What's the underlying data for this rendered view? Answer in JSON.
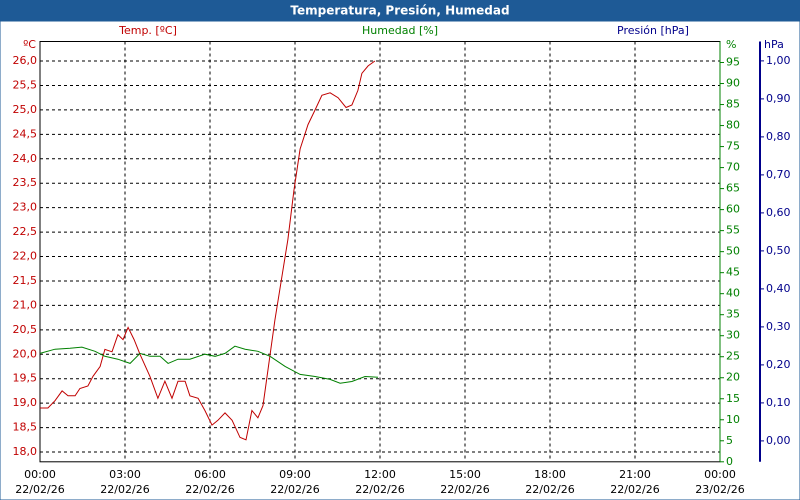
{
  "chart_data": {
    "type": "line",
    "title": "Temperatura, Presión, Humedad",
    "xlim": [
      0,
      24
    ],
    "xticks": [
      {
        "value": 0,
        "label": "00:00",
        "date": "22/02/26"
      },
      {
        "value": 3,
        "label": "03:00",
        "date": "22/02/26"
      },
      {
        "value": 6,
        "label": "06:00",
        "date": "22/02/26"
      },
      {
        "value": 9,
        "label": "09:00",
        "date": "22/02/26"
      },
      {
        "value": 12,
        "label": "12:00",
        "date": "22/02/26"
      },
      {
        "value": 15,
        "label": "15:00",
        "date": "22/02/26"
      },
      {
        "value": 18,
        "label": "18:00",
        "date": "22/02/26"
      },
      {
        "value": 21,
        "label": "21:00",
        "date": "22/02/26"
      },
      {
        "value": 24,
        "label": "00:00",
        "date": "23/02/26"
      }
    ],
    "y_unit": "ºC",
    "ylim": [
      17.8,
      26.4
    ],
    "yticks": [
      {
        "value": 18.0,
        "label": "18,0"
      },
      {
        "value": 18.5,
        "label": "18,5"
      },
      {
        "value": 19.0,
        "label": "19,0"
      },
      {
        "value": 19.5,
        "label": "19,5"
      },
      {
        "value": 20.0,
        "label": "20,0"
      },
      {
        "value": 20.5,
        "label": "20,5"
      },
      {
        "value": 21.0,
        "label": "21,0"
      },
      {
        "value": 21.5,
        "label": "21,5"
      },
      {
        "value": 22.0,
        "label": "22,0"
      },
      {
        "value": 22.5,
        "label": "22,5"
      },
      {
        "value": 23.0,
        "label": "23,0"
      },
      {
        "value": 23.5,
        "label": "23,5"
      },
      {
        "value": 24.0,
        "label": "24,0"
      },
      {
        "value": 24.5,
        "label": "24,5"
      },
      {
        "value": 25.0,
        "label": "25,0"
      },
      {
        "value": 25.5,
        "label": "25,5"
      },
      {
        "value": 26.0,
        "label": "26,0"
      }
    ],
    "y2_unit": "%",
    "y2lim": [
      0,
      100
    ],
    "y2ticks": [
      0,
      5,
      10,
      15,
      20,
      25,
      30,
      35,
      40,
      45,
      50,
      55,
      60,
      65,
      70,
      75,
      80,
      85,
      90,
      95
    ],
    "y3_label": "Presión [hPa]",
    "y3_unit": "hPa",
    "y3lim": [
      -0.055,
      1.051
    ],
    "y3ticks": [
      {
        "value": 0,
        "label": "0,00"
      },
      {
        "value": 0.1,
        "label": "0,10"
      },
      {
        "value": 0.2,
        "label": "0,20"
      },
      {
        "value": 0.3,
        "label": "0,30"
      },
      {
        "value": 0.4,
        "label": "0,40"
      },
      {
        "value": 0.5,
        "label": "0,50"
      },
      {
        "value": 0.6,
        "label": "0,60"
      },
      {
        "value": 0.7,
        "label": "0,70"
      },
      {
        "value": 0.8,
        "label": "0,80"
      },
      {
        "value": 0.9,
        "label": "0,90"
      },
      {
        "value": 1.0,
        "label": "1,00"
      }
    ],
    "grid": true,
    "series": [
      {
        "name": "Temp. [ºC]",
        "color": "#c00000",
        "axis": "y",
        "x": [
          0,
          0.28,
          0.53,
          0.78,
          0.99,
          1.24,
          1.41,
          1.69,
          1.87,
          2.12,
          2.29,
          2.54,
          2.75,
          2.93,
          3.11,
          3.32,
          3.53,
          3.88,
          4.16,
          4.41,
          4.66,
          4.87,
          5.12,
          5.29,
          5.58,
          5.82,
          6.07,
          6.28,
          6.53,
          6.78,
          7.06,
          7.27,
          7.48,
          7.69,
          7.87,
          8.05,
          8.29,
          8.54,
          8.75,
          8.96,
          9.18,
          9.46,
          9.71,
          9.95,
          10.24,
          10.52,
          10.8,
          11.01,
          11.22,
          11.36,
          11.58,
          11.82
        ],
        "values": [
          18.9,
          18.9,
          19.05,
          19.25,
          19.15,
          19.15,
          19.3,
          19.35,
          19.55,
          19.75,
          20.1,
          20.05,
          20.4,
          20.3,
          20.55,
          20.3,
          20.0,
          19.55,
          19.1,
          19.45,
          19.1,
          19.45,
          19.45,
          19.15,
          19.1,
          18.85,
          18.55,
          18.65,
          18.8,
          18.65,
          18.3,
          18.25,
          18.85,
          18.7,
          18.95,
          19.7,
          20.7,
          21.6,
          22.35,
          23.35,
          24.2,
          24.7,
          25.0,
          25.3,
          25.35,
          25.25,
          25.05,
          25.1,
          25.4,
          25.75,
          25.9,
          26.0
        ]
      },
      {
        "name": "Humedad [%]",
        "color": "#008000",
        "axis": "y2",
        "x": [
          0,
          0.53,
          1.06,
          1.48,
          1.94,
          2.29,
          2.75,
          3.18,
          3.53,
          3.88,
          4.24,
          4.52,
          4.87,
          5.29,
          5.82,
          6.18,
          6.53,
          6.88,
          7.24,
          7.69,
          8.12,
          8.65,
          9.18,
          9.71,
          10.24,
          10.59,
          11.01,
          11.47,
          11.93
        ],
        "values": [
          25.8,
          26.8,
          27,
          27.3,
          26.3,
          25.1,
          24.4,
          23.4,
          25.8,
          25.1,
          25.1,
          23.4,
          24.4,
          24.4,
          25.6,
          25.1,
          25.8,
          27.5,
          26.8,
          26.3,
          25.1,
          22.7,
          20.8,
          20.3,
          19.6,
          18.7,
          19.1,
          20.3,
          20.1
        ]
      }
    ]
  }
}
